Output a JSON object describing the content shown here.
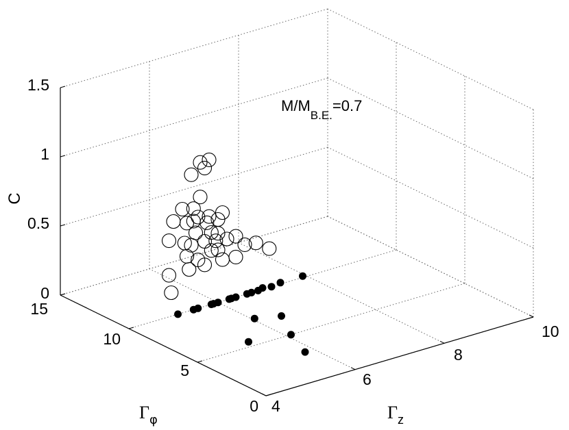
{
  "chart_data": {
    "type": "scatter",
    "projection": "3d",
    "annotation": {
      "main": "M/M",
      "subscript": "B.E.",
      "suffix": "=0.7"
    },
    "axes": {
      "x": {
        "label": "Γ",
        "sub": "z",
        "range": [
          4,
          10
        ],
        "ticks": [
          "4",
          "6",
          "8",
          "10"
        ]
      },
      "y": {
        "label": "Γ",
        "sub": "φ",
        "range": [
          0,
          15
        ],
        "ticks": [
          "0",
          "5",
          "10",
          "15"
        ]
      },
      "z": {
        "label": "C",
        "range": [
          0,
          1.5
        ],
        "ticks": [
          "0",
          "0.5",
          "1",
          "1.5"
        ]
      }
    },
    "grid": true,
    "series": [
      {
        "marker": "open-circle",
        "points": [
          [
            5.4,
            10.0,
            0.98
          ],
          [
            5.6,
            10.0,
            1.05
          ],
          [
            5.8,
            10.0,
            1.05
          ],
          [
            5.7,
            10.0,
            1.0
          ],
          [
            5.6,
            10.0,
            0.8
          ],
          [
            5.2,
            10.0,
            0.75
          ],
          [
            5.45,
            10.0,
            0.73
          ],
          [
            5.0,
            10.0,
            0.68
          ],
          [
            5.55,
            10.0,
            0.66
          ],
          [
            5.3,
            10.0,
            0.64
          ],
          [
            5.45,
            10.0,
            0.64
          ],
          [
            5.8,
            10.0,
            0.64
          ],
          [
            6.1,
            10.0,
            0.64
          ],
          [
            5.75,
            10.0,
            0.6
          ],
          [
            6.0,
            10.0,
            0.6
          ],
          [
            4.9,
            10.0,
            0.55
          ],
          [
            5.5,
            10.0,
            0.55
          ],
          [
            5.25,
            10.0,
            0.5
          ],
          [
            5.85,
            10.0,
            0.52
          ],
          [
            6.0,
            10.0,
            0.5
          ],
          [
            5.4,
            10.0,
            0.47
          ],
          [
            5.7,
            10.0,
            0.47
          ],
          [
            5.95,
            10.0,
            0.45
          ],
          [
            6.2,
            10.0,
            0.44
          ],
          [
            6.4,
            10.0,
            0.44
          ],
          [
            5.3,
            10.0,
            0.4
          ],
          [
            5.85,
            10.0,
            0.39
          ],
          [
            6.0,
            10.0,
            0.38
          ],
          [
            5.55,
            10.0,
            0.35
          ],
          [
            6.6,
            10.0,
            0.36
          ],
          [
            6.85,
            10.0,
            0.35
          ],
          [
            4.9,
            10.0,
            0.3
          ],
          [
            5.35,
            10.0,
            0.3
          ],
          [
            5.7,
            10.0,
            0.3
          ],
          [
            6.1,
            10.0,
            0.3
          ],
          [
            6.4,
            10.0,
            0.29
          ],
          [
            7.15,
            10.0,
            0.28
          ],
          [
            4.95,
            10.0,
            0.17
          ]
        ]
      },
      {
        "marker": "filled-circle",
        "points": [
          [
            7.0,
            10.0,
            0.01
          ],
          [
            7.4,
            10.0,
            0.01
          ],
          [
            7.9,
            10.0,
            0.01
          ],
          [
            6.3,
            10.0,
            0.0
          ],
          [
            6.0,
            10.0,
            0.0
          ],
          [
            5.45,
            10.0,
            0.0
          ],
          [
            5.9,
            10.0,
            0.0
          ],
          [
            6.25,
            10.0,
            0.0
          ],
          [
            6.75,
            10.0,
            0.0
          ],
          [
            5.1,
            10.0,
            0.0
          ],
          [
            6.65,
            10.0,
            0.0
          ],
          [
            5.55,
            10.0,
            0.0
          ],
          [
            6.9,
            10.0,
            0.0
          ],
          [
            6.4,
            10.0,
            0.0
          ],
          [
            5.85,
            10.0,
            0.0
          ],
          [
            7.2,
            10.0,
            0.0
          ],
          [
            5.3,
            5.5,
            0.0
          ],
          [
            6.5,
            7.0,
            0.0
          ],
          [
            6.05,
            7.5,
            0.0
          ],
          [
            6.1,
            5.0,
            0.0
          ],
          [
            5.8,
            3.0,
            0.0
          ]
        ]
      }
    ]
  }
}
